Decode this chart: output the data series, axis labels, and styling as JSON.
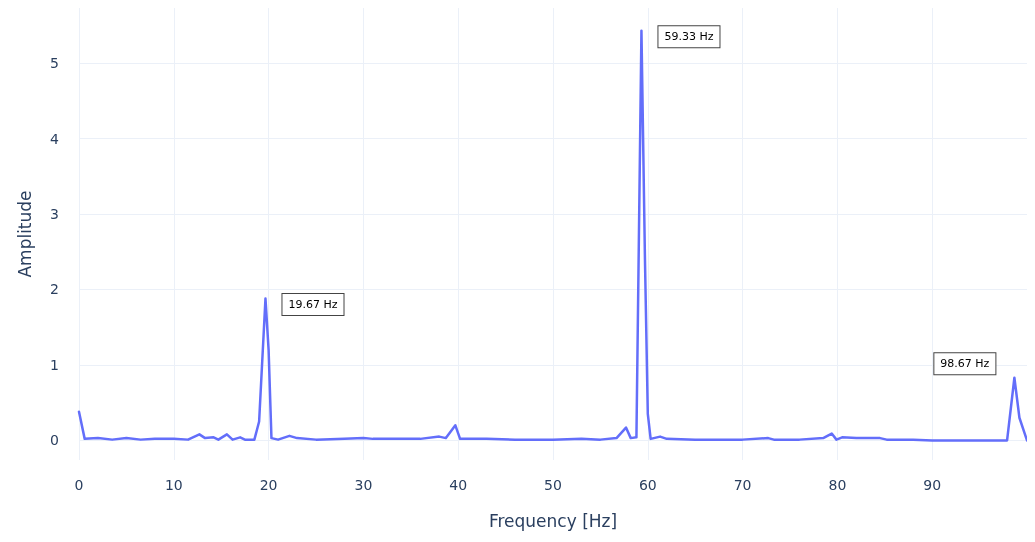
{
  "chart_data": {
    "type": "line",
    "xlabel": "Frequency [Hz]",
    "ylabel": "Amplitude",
    "xlim": [
      0,
      100
    ],
    "ylim": [
      -0.26,
      5.73
    ],
    "xticks": [
      0,
      10,
      20,
      30,
      40,
      50,
      60,
      70,
      80,
      90
    ],
    "yticks": [
      0,
      1,
      2,
      3,
      4,
      5
    ],
    "grid": true,
    "marker": "none",
    "line_style": "solid",
    "series": [
      {
        "color": "#636efa",
        "x": [
          0,
          0.6,
          2,
          3.5,
          5,
          6.5,
          8,
          10,
          11.5,
          12.7,
          13.3,
          14.2,
          14.7,
          15.6,
          16.2,
          17,
          17.5,
          18.5,
          19.0,
          19.67,
          20.0,
          20.3,
          21,
          22.2,
          23,
          25,
          28,
          30,
          31,
          33,
          36,
          38,
          38.7,
          39.7,
          40.2,
          43,
          46,
          50,
          53,
          55,
          56.7,
          57.7,
          58.2,
          58.8,
          59.33,
          59.7,
          60.0,
          60.3,
          61.3,
          62,
          65,
          70,
          72.7,
          73.3,
          76,
          78.5,
          79.4,
          79.9,
          80.5,
          82,
          84.5,
          85.2,
          88,
          90,
          94,
          97.9,
          98.67,
          99.2,
          100
        ],
        "values": [
          0.38,
          0.02,
          0.03,
          0.01,
          0.03,
          0.01,
          0.02,
          0.02,
          0.01,
          0.08,
          0.03,
          0.04,
          0.01,
          0.08,
          0.01,
          0.04,
          0.01,
          0.01,
          0.25,
          1.88,
          1.2,
          0.03,
          0.01,
          0.06,
          0.03,
          0.01,
          0.02,
          0.03,
          0.02,
          0.02,
          0.02,
          0.05,
          0.03,
          0.2,
          0.02,
          0.02,
          0.01,
          0.01,
          0.02,
          0.01,
          0.03,
          0.17,
          0.03,
          0.04,
          5.43,
          2.4,
          0.35,
          0.02,
          0.05,
          0.02,
          0.01,
          0.01,
          0.03,
          0.01,
          0.01,
          0.03,
          0.09,
          0.01,
          0.04,
          0.03,
          0.03,
          0.01,
          0.01,
          0,
          0,
          0,
          0.83,
          0.3,
          0
        ]
      }
    ],
    "annotations": [
      {
        "text": "19.67 Hz",
        "x": 19.67,
        "y": 1.88
      },
      {
        "text": "59.33 Hz",
        "x": 59.33,
        "y": 5.43
      },
      {
        "text": "98.67 Hz",
        "x": 98.67,
        "y": 0.83
      }
    ]
  }
}
